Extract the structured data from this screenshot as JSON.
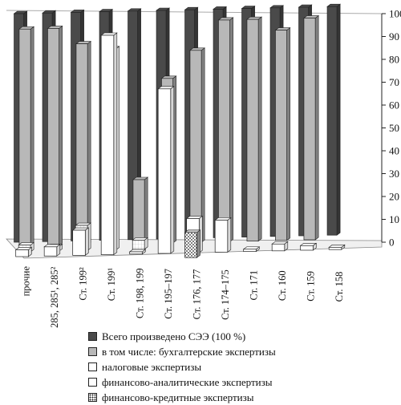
{
  "chart_data": {
    "type": "bar",
    "ylim": [
      0,
      100
    ],
    "yticks": [
      0,
      10,
      20,
      30,
      40,
      50,
      60,
      70,
      80,
      90,
      100
    ],
    "categories": [
      "прочие",
      "Ст. 285, 285¹, 285²",
      "Ст. 199²",
      "Ст. 199¹",
      "Ст. 198, 199",
      "Ст. 195–197",
      "Ст. 176, 177",
      "Ст. 174–175",
      "Ст. 171",
      "Ст. 160",
      "Ст. 159",
      "Ст. 158"
    ],
    "series": [
      {
        "name": "Всего произведено СЭЭ (100 %)",
        "values": [
          100,
          100,
          100,
          100,
          100,
          100,
          100,
          100,
          100,
          100,
          100,
          100
        ]
      },
      {
        "name": "в том числе: бухгалтерские экспертизы",
        "values": [
          95,
          95,
          88,
          0,
          28,
          72,
          84,
          97,
          97,
          92,
          97,
          0
        ]
      },
      {
        "name": "налоговые экспертизы",
        "values": [
          3,
          2,
          11,
          88,
          4,
          0,
          0,
          0,
          0,
          0,
          0,
          0
        ]
      },
      {
        "name": "финансово-аналитические экспертизы",
        "values": [
          3,
          4,
          11,
          96,
          1,
          72,
          15,
          14,
          1,
          3,
          2,
          1
        ]
      },
      {
        "name": "финансово-кредитные экспертизы",
        "values": [
          0,
          0,
          0,
          0,
          0,
          0,
          11,
          0,
          0,
          0,
          0,
          0
        ]
      }
    ],
    "legend_position": "bottom",
    "grid": false
  },
  "legend": {
    "items": [
      {
        "label": "Всего произведено СЭЭ (100 %)",
        "pattern": "dark"
      },
      {
        "label": "в том числе: бухгалтерские экспертизы",
        "pattern": "light"
      },
      {
        "label": "налоговые экспертизы",
        "pattern": "white"
      },
      {
        "label": "финансово-аналитические экспертизы",
        "pattern": "white"
      },
      {
        "label": "финансово-кредитные экспертизы",
        "pattern": "dotted"
      }
    ]
  },
  "colors": {
    "dark": "#4a4a4a",
    "light": "#b8b8b8",
    "white": "#ffffff",
    "outline": "#222222"
  }
}
